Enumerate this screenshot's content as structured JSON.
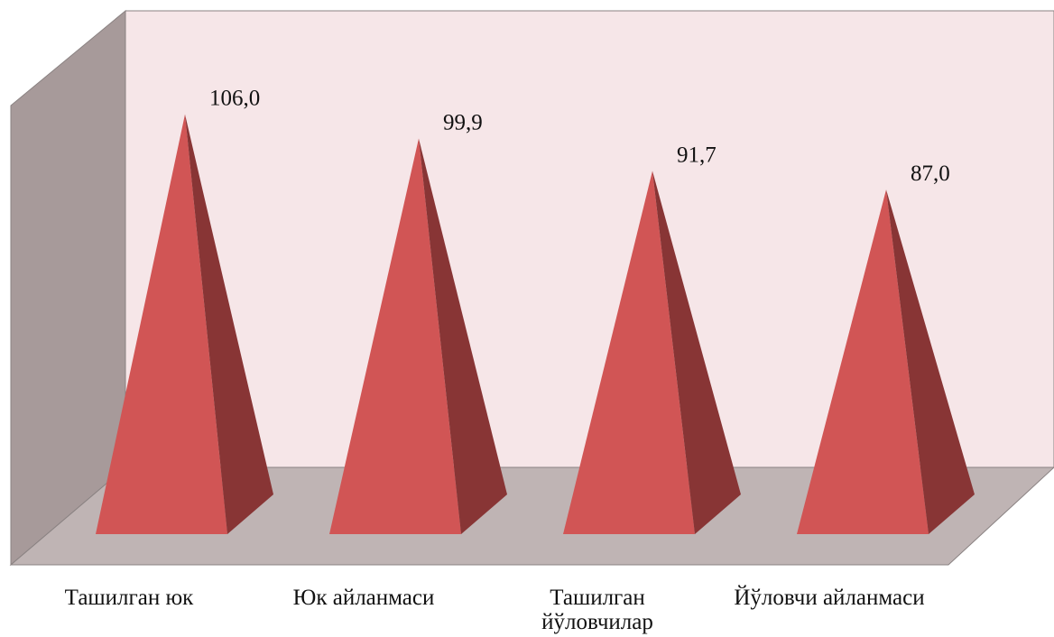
{
  "chart_data": {
    "type": "bar",
    "style": "3d-pyramid",
    "categories": [
      "Ташилган юк",
      "Юк айланмаси",
      "Ташилган йўловчилар",
      "Йўловчи айланмаси"
    ],
    "category_lines": [
      [
        "Ташилган юк"
      ],
      [
        "Юк айланмаси"
      ],
      [
        "Ташилган",
        "йўловчилар"
      ],
      [
        "Йўловчи айланмаси"
      ]
    ],
    "values": [
      106.0,
      99.9,
      91.7,
      87.0
    ],
    "data_labels": [
      "106,0",
      "99,9",
      "91,7",
      "87,0"
    ],
    "title": "",
    "xlabel": "",
    "ylabel": "",
    "grid": false,
    "legend": "none",
    "colors": {
      "pyramid_front": "#d15555",
      "pyramid_side": "#883535",
      "back_wall": "#f6e6e8",
      "side_wall": "#a79a9a",
      "floor": "#bfb4b4",
      "wall_edge": "#8a8282"
    }
  }
}
